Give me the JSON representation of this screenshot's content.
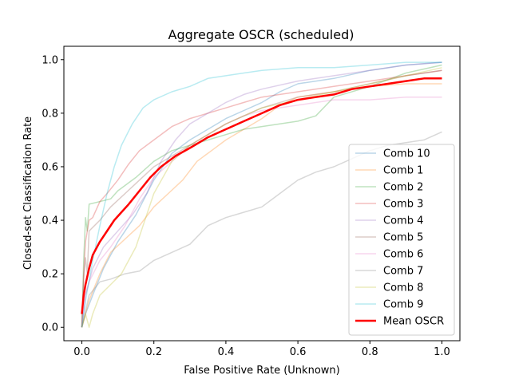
{
  "chart_data": {
    "type": "line",
    "title": "Aggregate OSCR (scheduled)",
    "xlabel": "False Positive Rate (Unknown)",
    "ylabel": "Closed-set Classification Rate",
    "xlim": [
      -0.05,
      1.05
    ],
    "ylim": [
      -0.05,
      1.05
    ],
    "xticks": [
      "0.0",
      "0.2",
      "0.4",
      "0.6",
      "0.8",
      "1.0"
    ],
    "yticks": [
      "0.0",
      "0.2",
      "0.4",
      "0.6",
      "0.8",
      "1.0"
    ],
    "grid": false,
    "legend_position": "lower-right",
    "series": [
      {
        "name": "Comb 10",
        "color": "#1f77b4",
        "opacity": 0.3,
        "width": 1.5,
        "x": [
          0,
          0.01,
          0.03,
          0.06,
          0.1,
          0.15,
          0.2,
          0.25,
          0.3,
          0.35,
          0.4,
          0.45,
          0.5,
          0.55,
          0.6,
          0.7,
          0.8,
          0.9,
          1.0
        ],
        "y": [
          0.0,
          0.05,
          0.12,
          0.22,
          0.32,
          0.42,
          0.55,
          0.65,
          0.7,
          0.74,
          0.78,
          0.81,
          0.84,
          0.88,
          0.91,
          0.93,
          0.96,
          0.98,
          0.99
        ]
      },
      {
        "name": "Comb 1",
        "color": "#ff7f0e",
        "opacity": 0.3,
        "width": 1.5,
        "x": [
          0,
          0.02,
          0.05,
          0.08,
          0.12,
          0.16,
          0.2,
          0.24,
          0.28,
          0.32,
          0.36,
          0.4,
          0.45,
          0.5,
          0.55,
          0.6,
          0.7,
          0.8,
          0.9,
          1.0
        ],
        "y": [
          0.0,
          0.1,
          0.2,
          0.28,
          0.33,
          0.38,
          0.45,
          0.5,
          0.55,
          0.62,
          0.66,
          0.7,
          0.74,
          0.78,
          0.83,
          0.86,
          0.88,
          0.9,
          0.91,
          0.91
        ]
      },
      {
        "name": "Comb 2",
        "color": "#2ca02c",
        "opacity": 0.3,
        "width": 1.5,
        "x": [
          0,
          0.005,
          0.01,
          0.015,
          0.02,
          0.05,
          0.08,
          0.1,
          0.15,
          0.2,
          0.25,
          0.3,
          0.35,
          0.4,
          0.45,
          0.5,
          0.55,
          0.6,
          0.65,
          0.7,
          0.8,
          0.9,
          1.0
        ],
        "y": [
          0.0,
          0.25,
          0.41,
          0.36,
          0.46,
          0.47,
          0.48,
          0.51,
          0.56,
          0.62,
          0.66,
          0.68,
          0.7,
          0.72,
          0.74,
          0.75,
          0.76,
          0.77,
          0.79,
          0.86,
          0.9,
          0.95,
          0.98
        ]
      },
      {
        "name": "Comb 3",
        "color": "#d62728",
        "opacity": 0.3,
        "width": 1.5,
        "x": [
          0,
          0.005,
          0.01,
          0.02,
          0.03,
          0.05,
          0.07,
          0.1,
          0.13,
          0.16,
          0.2,
          0.25,
          0.3,
          0.35,
          0.4,
          0.45,
          0.5,
          0.6,
          0.7,
          0.8,
          0.9,
          1.0
        ],
        "y": [
          0.0,
          0.2,
          0.32,
          0.4,
          0.41,
          0.47,
          0.5,
          0.55,
          0.61,
          0.66,
          0.7,
          0.75,
          0.78,
          0.8,
          0.82,
          0.84,
          0.86,
          0.88,
          0.9,
          0.92,
          0.94,
          0.96
        ]
      },
      {
        "name": "Comb 4",
        "color": "#9467bd",
        "opacity": 0.3,
        "width": 1.5,
        "x": [
          0,
          0.01,
          0.03,
          0.06,
          0.1,
          0.14,
          0.18,
          0.22,
          0.26,
          0.3,
          0.35,
          0.4,
          0.45,
          0.5,
          0.6,
          0.7,
          0.8,
          0.9,
          1.0
        ],
        "y": [
          0.0,
          0.12,
          0.22,
          0.3,
          0.36,
          0.42,
          0.5,
          0.62,
          0.7,
          0.76,
          0.8,
          0.84,
          0.87,
          0.89,
          0.92,
          0.94,
          0.96,
          0.98,
          0.99
        ]
      },
      {
        "name": "Comb 5",
        "color": "#8c564b",
        "opacity": 0.3,
        "width": 1.5,
        "x": [
          0,
          0.005,
          0.01,
          0.015,
          0.02,
          0.05,
          0.08,
          0.12,
          0.16,
          0.2,
          0.25,
          0.3,
          0.35,
          0.4,
          0.45,
          0.5,
          0.6,
          0.7,
          0.8,
          0.9,
          1.0
        ],
        "y": [
          0.0,
          0.18,
          0.26,
          0.2,
          0.36,
          0.4,
          0.45,
          0.5,
          0.55,
          0.6,
          0.64,
          0.68,
          0.72,
          0.76,
          0.79,
          0.82,
          0.86,
          0.88,
          0.91,
          0.94,
          0.96
        ]
      },
      {
        "name": "Comb 6",
        "color": "#e377c2",
        "opacity": 0.3,
        "width": 1.5,
        "x": [
          0,
          0.01,
          0.02,
          0.05,
          0.08,
          0.12,
          0.16,
          0.2,
          0.25,
          0.3,
          0.35,
          0.4,
          0.45,
          0.5,
          0.6,
          0.7,
          0.8,
          0.9,
          1.0
        ],
        "y": [
          0.0,
          0.12,
          0.17,
          0.25,
          0.3,
          0.38,
          0.48,
          0.56,
          0.62,
          0.68,
          0.72,
          0.76,
          0.79,
          0.81,
          0.83,
          0.85,
          0.85,
          0.86,
          0.86
        ]
      },
      {
        "name": "Comb 7",
        "color": "#7f7f7f",
        "opacity": 0.3,
        "width": 1.5,
        "x": [
          0,
          0.02,
          0.05,
          0.08,
          0.12,
          0.16,
          0.2,
          0.25,
          0.3,
          0.35,
          0.4,
          0.45,
          0.5,
          0.55,
          0.6,
          0.65,
          0.7,
          0.75,
          0.8,
          0.85,
          0.9,
          0.95,
          1.0
        ],
        "y": [
          0.0,
          0.12,
          0.17,
          0.18,
          0.2,
          0.21,
          0.25,
          0.28,
          0.31,
          0.38,
          0.41,
          0.43,
          0.45,
          0.5,
          0.55,
          0.58,
          0.6,
          0.63,
          0.66,
          0.68,
          0.69,
          0.7,
          0.73
        ]
      },
      {
        "name": "Comb 8",
        "color": "#bcbd22",
        "opacity": 0.3,
        "width": 1.5,
        "x": [
          0,
          0.01,
          0.02,
          0.03,
          0.05,
          0.08,
          0.11,
          0.15,
          0.2,
          0.25,
          0.3,
          0.35,
          0.4,
          0.45,
          0.5,
          0.6,
          0.7,
          0.8,
          0.9,
          1.0
        ],
        "y": [
          0.0,
          0.05,
          0.0,
          0.05,
          0.12,
          0.16,
          0.2,
          0.3,
          0.5,
          0.62,
          0.68,
          0.72,
          0.76,
          0.79,
          0.82,
          0.85,
          0.88,
          0.91,
          0.94,
          0.97
        ]
      },
      {
        "name": "Comb 9",
        "color": "#17becf",
        "opacity": 0.3,
        "width": 1.5,
        "x": [
          0,
          0.01,
          0.03,
          0.05,
          0.07,
          0.09,
          0.11,
          0.14,
          0.17,
          0.2,
          0.25,
          0.3,
          0.35,
          0.4,
          0.45,
          0.5,
          0.6,
          0.7,
          0.8,
          0.9,
          1.0
        ],
        "y": [
          0.0,
          0.1,
          0.25,
          0.38,
          0.5,
          0.6,
          0.68,
          0.76,
          0.82,
          0.85,
          0.88,
          0.9,
          0.93,
          0.94,
          0.95,
          0.96,
          0.97,
          0.97,
          0.98,
          0.99,
          0.99
        ]
      },
      {
        "name": "Mean OSCR",
        "color": "#ff0000",
        "opacity": 1,
        "width": 2.5,
        "x": [
          0,
          0.005,
          0.01,
          0.02,
          0.03,
          0.05,
          0.07,
          0.09,
          0.11,
          0.13,
          0.16,
          0.19,
          0.22,
          0.26,
          0.3,
          0.35,
          0.4,
          0.45,
          0.5,
          0.55,
          0.6,
          0.65,
          0.7,
          0.75,
          0.8,
          0.85,
          0.9,
          0.95,
          1.0
        ],
        "y": [
          0.05,
          0.12,
          0.16,
          0.22,
          0.27,
          0.32,
          0.36,
          0.4,
          0.43,
          0.46,
          0.51,
          0.56,
          0.6,
          0.64,
          0.67,
          0.71,
          0.74,
          0.77,
          0.8,
          0.83,
          0.85,
          0.86,
          0.87,
          0.89,
          0.9,
          0.91,
          0.92,
          0.93,
          0.93
        ]
      }
    ]
  }
}
